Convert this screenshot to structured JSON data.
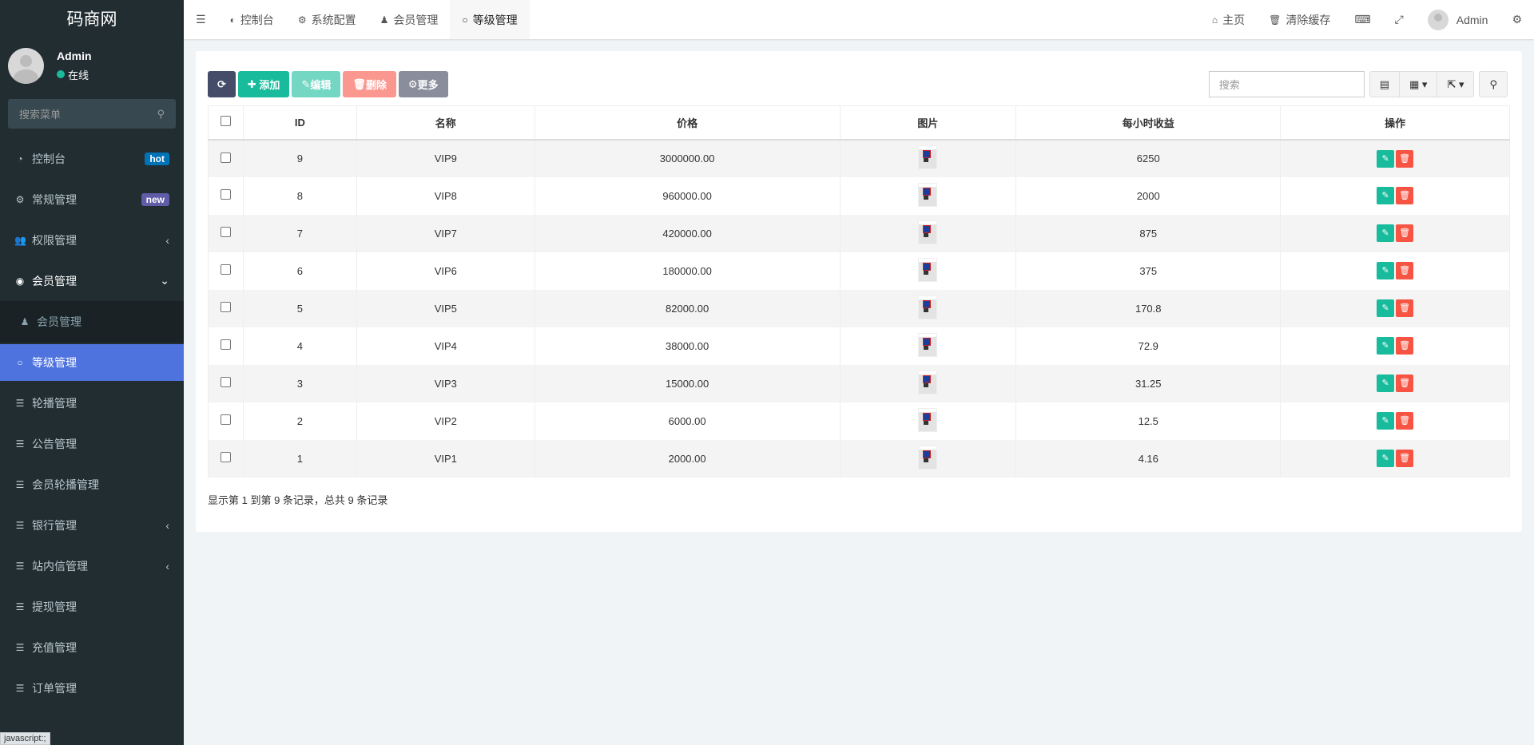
{
  "sidebar": {
    "logo": "码商网",
    "user": {
      "name": "Admin",
      "status": "在线"
    },
    "search_placeholder": "搜索菜单",
    "items": [
      {
        "label": "控制台",
        "icon": "dashboard-icon",
        "badge": "hot",
        "badge_color": "#0073b7"
      },
      {
        "label": "常规管理",
        "icon": "cogs-icon",
        "badge": "new",
        "badge_color": "#605ca8"
      },
      {
        "label": "权限管理",
        "icon": "group-icon",
        "arrow": "‹"
      },
      {
        "label": "会员管理",
        "icon": "user-circle-icon",
        "arrow": "⌄"
      },
      {
        "label": "会员管理",
        "icon": "user-icon"
      },
      {
        "label": "等级管理",
        "icon": "circle-icon"
      },
      {
        "label": "轮播管理",
        "icon": "list-icon"
      },
      {
        "label": "公告管理",
        "icon": "list-icon"
      },
      {
        "label": "会员轮播管理",
        "icon": "list-icon"
      },
      {
        "label": "银行管理",
        "icon": "list-icon",
        "arrow": "‹"
      },
      {
        "label": "站内信管理",
        "icon": "list-icon",
        "arrow": "‹"
      },
      {
        "label": "提现管理",
        "icon": "list-icon"
      },
      {
        "label": "充值管理",
        "icon": "list-icon"
      },
      {
        "label": "订单管理",
        "icon": "list-icon"
      }
    ]
  },
  "statusbar": "javascript:;",
  "topbar": {
    "tabs": [
      "控制台",
      "系统配置",
      "会员管理",
      "等级管理"
    ],
    "home": "主页",
    "clear_cache": "清除缓存",
    "user": "Admin"
  },
  "toolbar": {
    "add": "添加",
    "edit": "编辑",
    "delete": "删除",
    "more": "更多",
    "search_placeholder": "搜索"
  },
  "table": {
    "headers": [
      "ID",
      "名称",
      "价格",
      "图片",
      "每小时收益",
      "操作"
    ],
    "rows": [
      [
        "9",
        "VIP9",
        "3000000.00",
        "6250"
      ],
      [
        "8",
        "VIP8",
        "960000.00",
        "2000"
      ],
      [
        "7",
        "VIP7",
        "420000.00",
        "875"
      ],
      [
        "6",
        "VIP6",
        "180000.00",
        "375"
      ],
      [
        "5",
        "VIP5",
        "82000.00",
        "170.8"
      ],
      [
        "4",
        "VIP4",
        "38000.00",
        "72.9"
      ],
      [
        "3",
        "VIP3",
        "15000.00",
        "31.25"
      ],
      [
        "2",
        "VIP2",
        "6000.00",
        "12.5"
      ],
      [
        "1",
        "VIP1",
        "2000.00",
        "4.16"
      ]
    ]
  },
  "pagination": "显示第 1 到第 9 条记录，总共 9 条记录",
  "colors": {
    "sidebar": "#222d32",
    "active": "#4e73df",
    "success": "#18bc9c",
    "danger": "#f75444"
  }
}
